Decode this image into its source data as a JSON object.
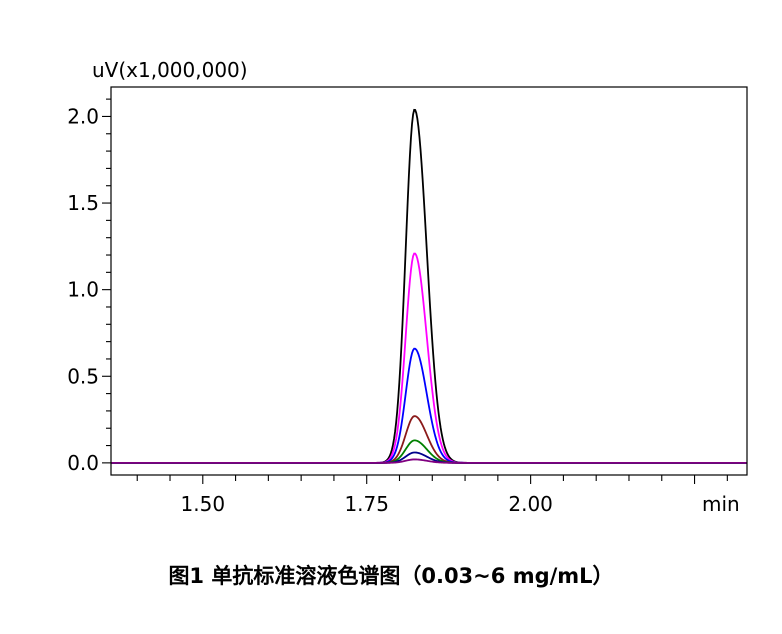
{
  "chart_data": {
    "type": "line",
    "y_unit_label": "uV(x1,000,000)",
    "x_unit_label": "min",
    "xlim": [
      1.36,
      2.33
    ],
    "ylim": [
      -0.07,
      2.17
    ],
    "x_ticks": [
      1.5,
      1.75,
      2.0
    ],
    "x_tick_labels": [
      "1.50",
      "1.75",
      "2.00"
    ],
    "y_ticks": [
      0.0,
      0.5,
      1.0,
      1.5,
      2.0
    ],
    "y_tick_labels": [
      "0.0",
      "0.5",
      "1.0",
      "1.5",
      "2.0"
    ],
    "grid": false,
    "legend": "none",
    "peak": {
      "retention_time": 1.823,
      "sigma_left": 0.0135,
      "sigma_right": 0.0185
    },
    "series": [
      {
        "color": "#000000",
        "peak_height": 2.04
      },
      {
        "color": "#ff00ff",
        "peak_height": 1.21
      },
      {
        "color": "#0000ff",
        "peak_height": 0.66
      },
      {
        "color": "#8b1a1a",
        "peak_height": 0.27
      },
      {
        "color": "#008000",
        "peak_height": 0.13
      },
      {
        "color": "#00008b",
        "peak_height": 0.06
      },
      {
        "color": "#800080",
        "peak_height": 0.02
      }
    ]
  },
  "caption": "图1 单抗标准溶液色谱图（0.03~6 mg/mL）"
}
